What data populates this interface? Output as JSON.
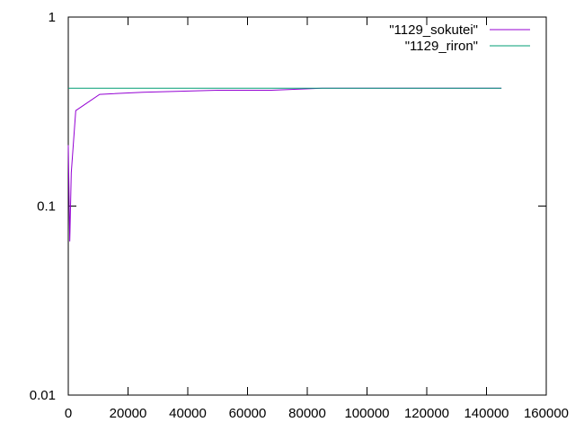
{
  "chart_data": {
    "type": "line",
    "series": [
      {
        "name": "\"1129_sokutei\"",
        "color": "#9400d3",
        "x": [
          0,
          500,
          1000,
          2500,
          10500,
          25000,
          50000,
          68000,
          85000,
          145000
        ],
        "values": [
          0.21,
          0.065,
          0.15,
          0.32,
          0.39,
          0.4,
          0.41,
          0.41,
          0.42,
          0.42
        ]
      },
      {
        "name": "\"1129_riron\"",
        "color": "#009e73",
        "x": [
          0,
          145000
        ],
        "values": [
          0.42,
          0.42
        ]
      }
    ],
    "xlim": [
      0,
      160000
    ],
    "xticks": [
      0,
      20000,
      40000,
      60000,
      80000,
      100000,
      120000,
      140000,
      160000
    ],
    "ylim": [
      0.01,
      1
    ],
    "yticks": [
      0.01,
      0.1,
      1
    ],
    "ylog": true,
    "legend": "top-right"
  }
}
